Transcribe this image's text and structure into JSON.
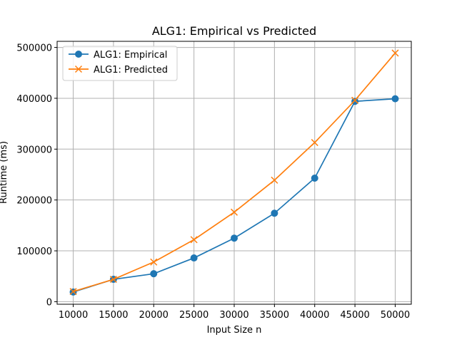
{
  "chart_data": {
    "type": "line",
    "title": "ALG1: Empirical vs Predicted",
    "xlabel": "Input Size n",
    "ylabel": "Runtime (ms)",
    "x": [
      10000,
      15000,
      20000,
      25000,
      30000,
      35000,
      40000,
      45000,
      50000
    ],
    "xlim": [
      8000,
      52000
    ],
    "ylim": [
      -5000,
      512000
    ],
    "x_ticks": [
      "10000",
      "15000",
      "20000",
      "25000",
      "30000",
      "35000",
      "40000",
      "45000",
      "50000"
    ],
    "y_ticks": [
      "0",
      "100000",
      "200000",
      "300000",
      "400000",
      "500000"
    ],
    "grid": true,
    "legend_position": "top-left",
    "series": [
      {
        "name": "ALG1: Empirical",
        "marker": "circle",
        "color": "#1f77b4",
        "values": [
          19000,
          44000,
          55000,
          86000,
          125000,
          174000,
          243000,
          394000,
          399000
        ]
      },
      {
        "name": "ALG1: Predicted",
        "marker": "x",
        "color": "#ff7f0e",
        "values": [
          20000,
          44000,
          78000,
          122000,
          176000,
          239000,
          313000,
          396000,
          489000
        ]
      }
    ]
  }
}
